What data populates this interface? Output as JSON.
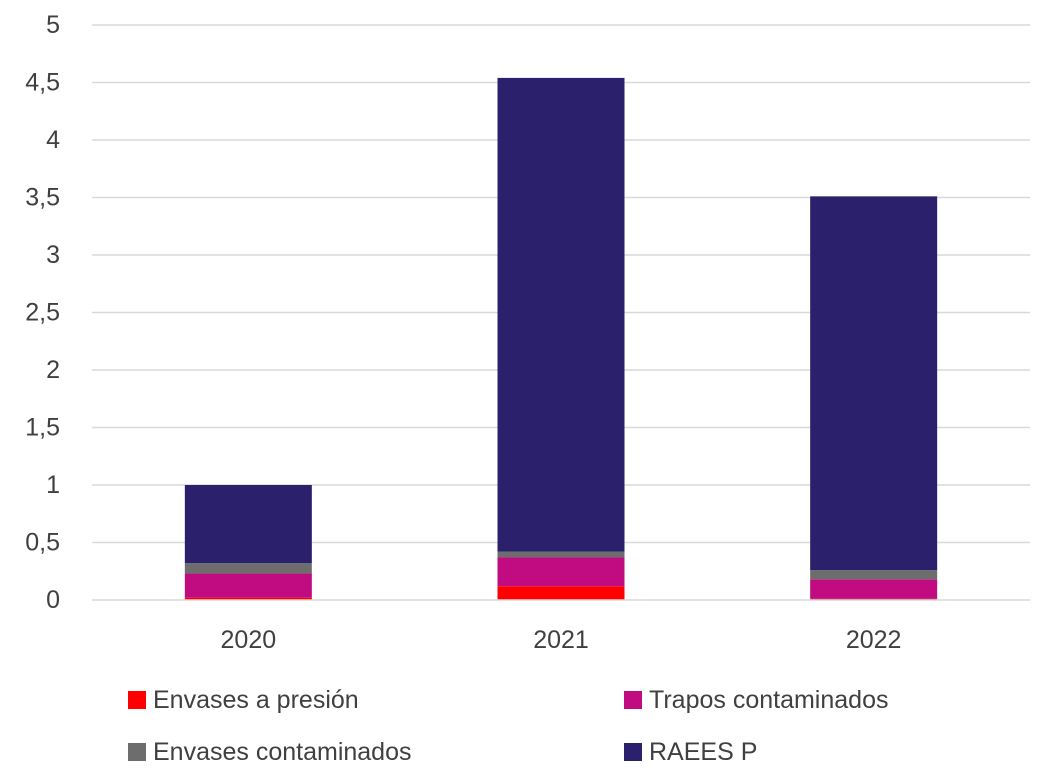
{
  "chart_data": {
    "type": "bar",
    "stacked": true,
    "categories": [
      "2020",
      "2021",
      "2022"
    ],
    "series": [
      {
        "name": "Envases a presión",
        "color": "#ff0000",
        "values": [
          0.02,
          0.12,
          0.01
        ]
      },
      {
        "name": "Trapos contaminados",
        "color": "#c00c80",
        "values": [
          0.21,
          0.25,
          0.17
        ]
      },
      {
        "name": "Envases contaminados",
        "color": "#6d6d6d",
        "values": [
          0.09,
          0.05,
          0.08
        ]
      },
      {
        "name": "RAEES P",
        "color": "#2b206b",
        "values": [
          0.68,
          4.12,
          3.25
        ]
      }
    ],
    "ylim": [
      0,
      5
    ],
    "yticks": [
      "0",
      "0,5",
      "1",
      "1,5",
      "2",
      "2,5",
      "3",
      "3,5",
      "4",
      "4,5",
      "5"
    ],
    "grid": true,
    "legend_position": "bottom"
  }
}
